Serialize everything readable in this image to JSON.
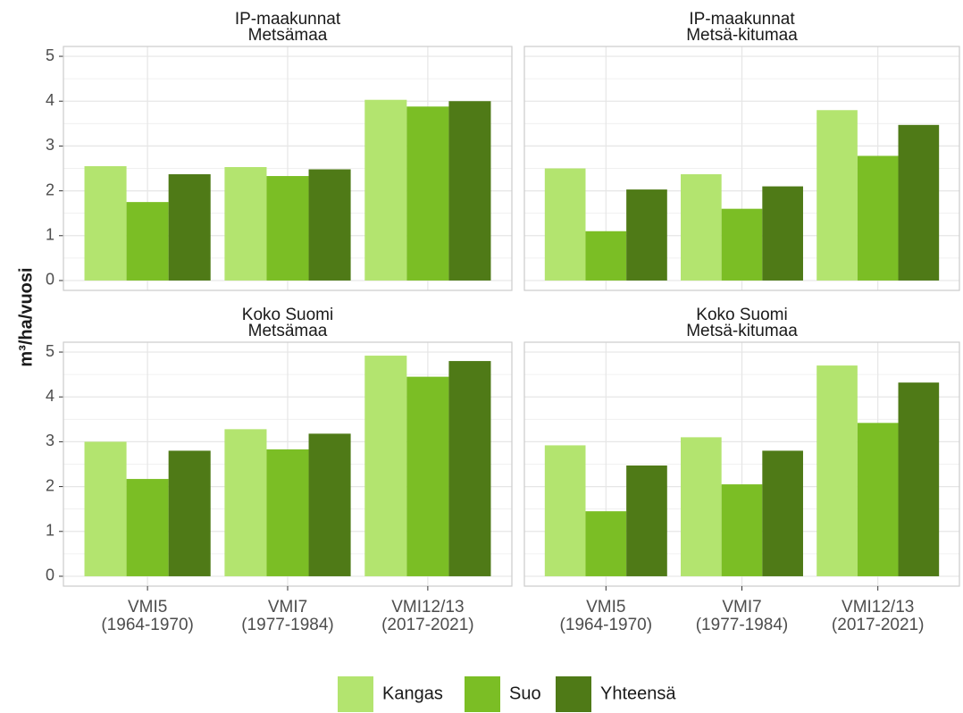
{
  "ylabel": "m³/ha/vuosi",
  "legend": [
    {
      "name": "Kangas",
      "color": "#b3e46f"
    },
    {
      "name": "Suo",
      "color": "#7bbe25"
    },
    {
      "name": "Yhteensä",
      "color": "#4f7a17"
    }
  ],
  "chart_data": [
    {
      "type": "bar",
      "title": [
        "IP-maakunnat",
        "Metsämaa"
      ],
      "series": [
        {
          "values": [
            2.55,
            2.53,
            4.03
          ]
        },
        {
          "values": [
            1.75,
            2.33,
            3.88
          ]
        },
        {
          "values": [
            2.37,
            2.48,
            4.0
          ]
        }
      ],
      "ylim": [
        -0.22,
        5.22
      ],
      "yticks": [
        0,
        1,
        2,
        3,
        4,
        5
      ]
    },
    {
      "type": "bar",
      "title": [
        "IP-maakunnat",
        "Metsä-kitumaa"
      ],
      "series": [
        {
          "values": [
            2.5,
            2.37,
            3.8
          ]
        },
        {
          "values": [
            1.1,
            1.6,
            2.78
          ]
        },
        {
          "values": [
            2.03,
            2.1,
            3.47
          ]
        }
      ],
      "ylim": [
        -0.22,
        5.22
      ],
      "yticks": [
        0,
        1,
        2,
        3,
        4,
        5
      ]
    },
    {
      "type": "bar",
      "title": [
        "Koko Suomi",
        "Metsämaa"
      ],
      "categories": [
        [
          "VMI5",
          "(1964-1970)"
        ],
        [
          "VMI7",
          "(1977-1984)"
        ],
        [
          "VMI12/13",
          "(2017-2021)"
        ]
      ],
      "series": [
        {
          "values": [
            3.0,
            3.28,
            4.92
          ]
        },
        {
          "values": [
            2.17,
            2.83,
            4.45
          ]
        },
        {
          "values": [
            2.8,
            3.18,
            4.8
          ]
        }
      ],
      "ylim": [
        -0.22,
        5.22
      ],
      "yticks": [
        0,
        1,
        2,
        3,
        4,
        5
      ]
    },
    {
      "type": "bar",
      "title": [
        "Koko Suomi",
        "Metsä-kitumaa"
      ],
      "categories": [
        [
          "VMI5",
          "(1964-1970)"
        ],
        [
          "VMI7",
          "(1977-1984)"
        ],
        [
          "VMI12/13",
          "(2017-2021)"
        ]
      ],
      "series": [
        {
          "values": [
            2.92,
            3.1,
            4.7
          ]
        },
        {
          "values": [
            1.45,
            2.05,
            3.42
          ]
        },
        {
          "values": [
            2.47,
            2.8,
            4.32
          ]
        }
      ],
      "ylim": [
        -0.22,
        5.22
      ]
    }
  ]
}
